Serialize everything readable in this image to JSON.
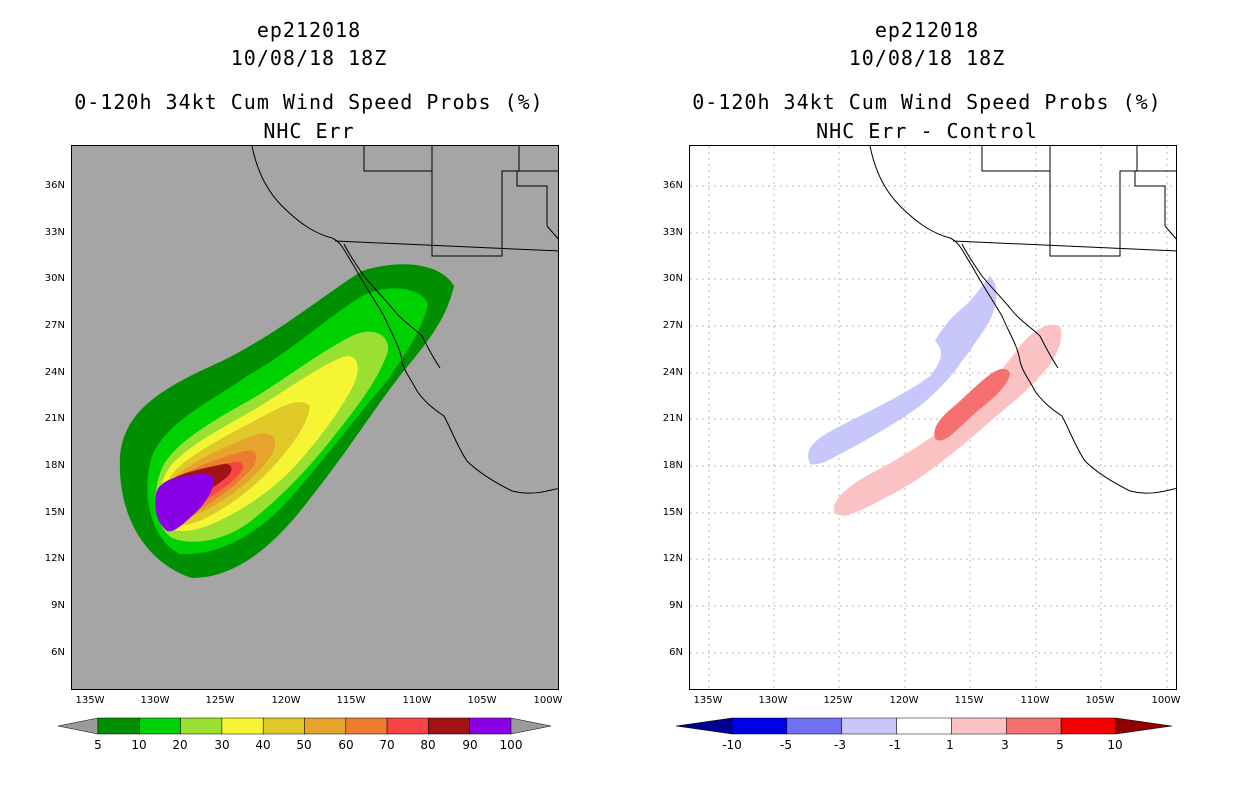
{
  "left": {
    "title_line1": "ep212018",
    "title_line2": "10/08/18 18Z",
    "title_line3": "0-120h 34kt Cum Wind Speed Probs (%)",
    "title_line4": "NHC Err",
    "colorbar_labels": [
      "5",
      "10",
      "20",
      "30",
      "40",
      "50",
      "60",
      "70",
      "80",
      "90",
      "100"
    ],
    "colors": [
      "#008f00",
      "#00d100",
      "#99e033",
      "#f5f533",
      "#e0c829",
      "#e6a32e",
      "#ed7d2e",
      "#f54545",
      "#a11212",
      "#8a00e6"
    ],
    "under_color": "#9a9a9a",
    "over_color": "#9a9a9a"
  },
  "right": {
    "title_line1": "ep212018",
    "title_line2": "10/08/18 18Z",
    "title_line3": "0-120h 34kt Cum Wind Speed Probs (%)",
    "title_line4": "NHC Err - Control",
    "colorbar_labels": [
      "-10",
      "-5",
      "-3",
      "-1",
      "1",
      "3",
      "5",
      "10"
    ],
    "colors": [
      "#0000e6",
      "#7070f5",
      "#c7c7fc",
      "#ffffff",
      "#fac2c2",
      "#f77070",
      "#f50000"
    ],
    "under_color": "#00008f",
    "over_color": "#8f0000"
  },
  "lat_labels": [
    "36N",
    "33N",
    "30N",
    "27N",
    "24N",
    "21N",
    "18N",
    "15N",
    "12N",
    "9N",
    "6N"
  ],
  "lon_labels": [
    "135W",
    "130W",
    "125W",
    "120W",
    "115W",
    "110W",
    "105W",
    "100W"
  ]
}
